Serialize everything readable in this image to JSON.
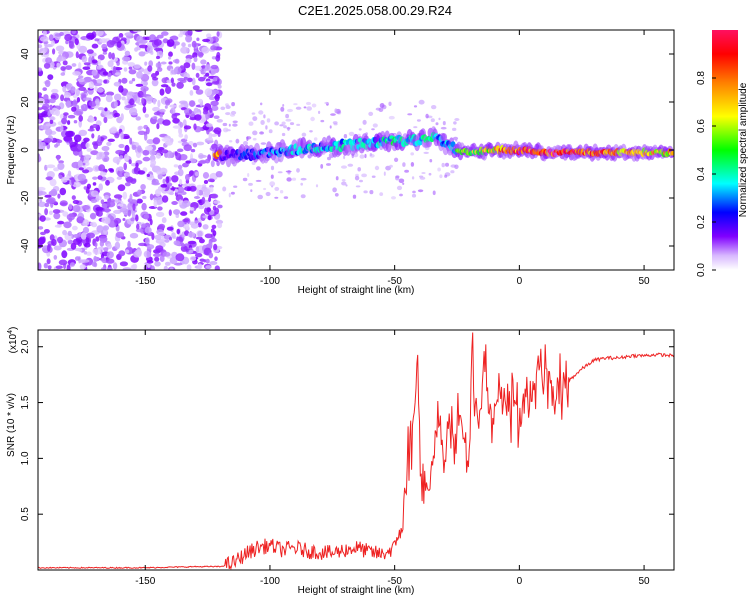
{
  "figure": {
    "title": "C2E1.2025.058.00.29.R24"
  },
  "chart_data": [
    {
      "type": "heatmap",
      "xlabel": "Height of straight line (km)",
      "ylabel": "Frequency (Hz)",
      "xlim": [
        -193,
        62
      ],
      "ylim": [
        -50,
        50
      ],
      "xticks": [
        -150,
        -100,
        -50,
        0,
        50
      ],
      "xtick_labels": [
        "-150",
        "-100",
        "-50",
        "0",
        "50"
      ],
      "yticks": [
        -40,
        -20,
        0,
        20,
        40
      ],
      "ytick_labels": [
        "-40",
        "-20",
        "0",
        "20",
        "40"
      ],
      "colorbar": {
        "label": "Normalized spectral amplitude",
        "range": [
          0,
          1
        ],
        "ticks": [
          0.0,
          0.2,
          0.4,
          0.6,
          0.8
        ],
        "tick_labels": [
          "0.0",
          "0.2",
          "0.4",
          "0.6",
          "0.8"
        ],
        "colormap": [
          "#ffffff",
          "#c8a0ff",
          "#8000ff",
          "#0000ff",
          "#00ffff",
          "#00ff00",
          "#ffff00",
          "#ff8000",
          "#ff0000",
          "#ff1493"
        ]
      },
      "ridge": {
        "description_points_x": [
          -120,
          -110,
          -100,
          -90,
          -80,
          -70,
          -60,
          -50,
          -40,
          -35,
          -30,
          -25,
          -20,
          -10,
          0,
          10,
          20,
          40,
          60
        ],
        "center_freq": [
          -2,
          -2,
          -1,
          0,
          1,
          2,
          3,
          4,
          4,
          6,
          3,
          0,
          -1,
          0,
          0,
          -1,
          -1,
          -1,
          -1
        ],
        "amplitude": [
          0.25,
          0.35,
          0.4,
          0.45,
          0.45,
          0.45,
          0.45,
          0.5,
          0.45,
          0.5,
          0.4,
          0.55,
          0.6,
          0.75,
          0.9,
          0.95,
          0.9,
          0.8,
          0.75
        ]
      },
      "grid": false
    },
    {
      "type": "line",
      "xlabel": "Height of straight line (km)",
      "ylabel": "SNR (10 * v/v)",
      "y_multiplier_label": "(x10^4)",
      "xlim": [
        -193,
        62
      ],
      "ylim": [
        0,
        2.15
      ],
      "xticks": [
        -150,
        -100,
        -50,
        0,
        50
      ],
      "xtick_labels": [
        "-150",
        "-100",
        "-50",
        "0",
        "50"
      ],
      "yticks": [
        0.5,
        1.0,
        1.5,
        2.0
      ],
      "ytick_labels": [
        "0.5",
        "1.0",
        "1.5",
        "2.0"
      ],
      "line_color": "#ee2222",
      "series": [
        {
          "x": [
            -193,
            -170,
            -150,
            -130,
            -120,
            -115,
            -110,
            -105,
            -100,
            -95,
            -90,
            -85,
            -80,
            -75,
            -70,
            -65,
            -60,
            -55,
            -50,
            -47,
            -45,
            -43,
            -42,
            -41,
            -40,
            -39,
            -38,
            -36,
            -34,
            -32,
            -30,
            -28,
            -26,
            -24,
            -22,
            -20,
            -19,
            -18,
            -16,
            -14,
            -12,
            -10,
            -8,
            -6,
            -4,
            -2,
            0,
            2,
            4,
            6,
            8,
            10,
            12,
            14,
            16,
            18,
            20,
            25,
            30,
            35,
            40,
            45,
            50,
            55,
            62
          ],
          "y": [
            0.02,
            0.02,
            0.02,
            0.03,
            0.03,
            0.06,
            0.14,
            0.2,
            0.22,
            0.18,
            0.2,
            0.17,
            0.16,
            0.15,
            0.18,
            0.2,
            0.16,
            0.14,
            0.2,
            0.45,
            0.9,
            1.2,
            1.6,
            1.85,
            1.3,
            0.6,
            0.8,
            0.7,
            1.1,
            1.3,
            0.9,
            1.4,
            1.15,
            1.5,
            1.1,
            0.9,
            2.1,
            1.7,
            1.2,
            2.0,
            1.35,
            1.45,
            1.55,
            1.5,
            1.4,
            1.55,
            1.35,
            1.55,
            1.5,
            1.6,
            1.75,
            1.7,
            1.8,
            1.45,
            1.65,
            1.65,
            1.7,
            1.8,
            1.88,
            1.9,
            1.9,
            1.92,
            1.92,
            1.93,
            1.92
          ]
        }
      ],
      "grid": false
    }
  ]
}
